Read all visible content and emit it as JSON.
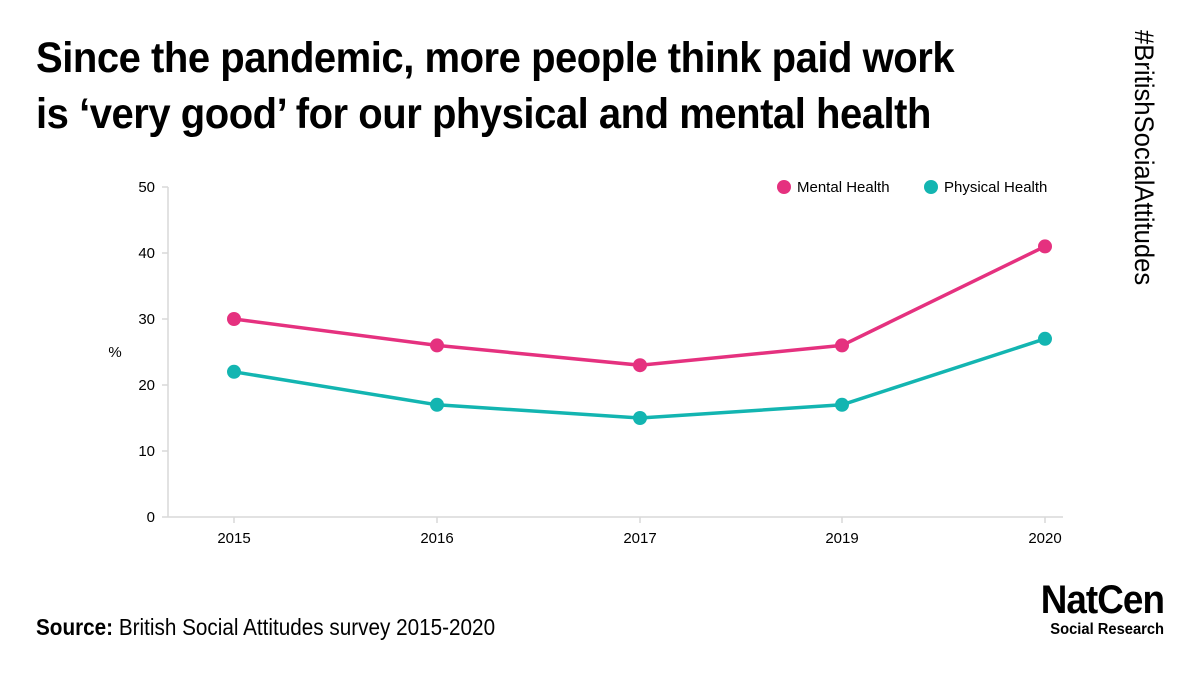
{
  "title": {
    "line1": "Since the pandemic, more people think paid work",
    "line2": "is ‘very good’ for our physical and mental health"
  },
  "hashtag": "#BritishSocialAttitudes",
  "source": {
    "label": "Source:",
    "text": " British Social Attitudes survey 2015-2020"
  },
  "logo": {
    "name": "NatCen",
    "subtitle": "Social Research"
  },
  "chart_data": {
    "type": "line",
    "categories": [
      "2015",
      "2016",
      "2017",
      "2019",
      "2020"
    ],
    "series": [
      {
        "name": "Mental Health",
        "color": "#e5317f",
        "values": [
          30,
          26,
          23,
          26,
          41
        ]
      },
      {
        "name": "Physical Health",
        "color": "#13b5b1",
        "values": [
          22,
          17,
          15,
          17,
          27
        ]
      }
    ],
    "ylabel": "%",
    "ylim": [
      0,
      50
    ],
    "yticks": [
      0,
      10,
      20,
      30,
      40,
      50
    ],
    "grid": false,
    "legend": "top-right"
  }
}
